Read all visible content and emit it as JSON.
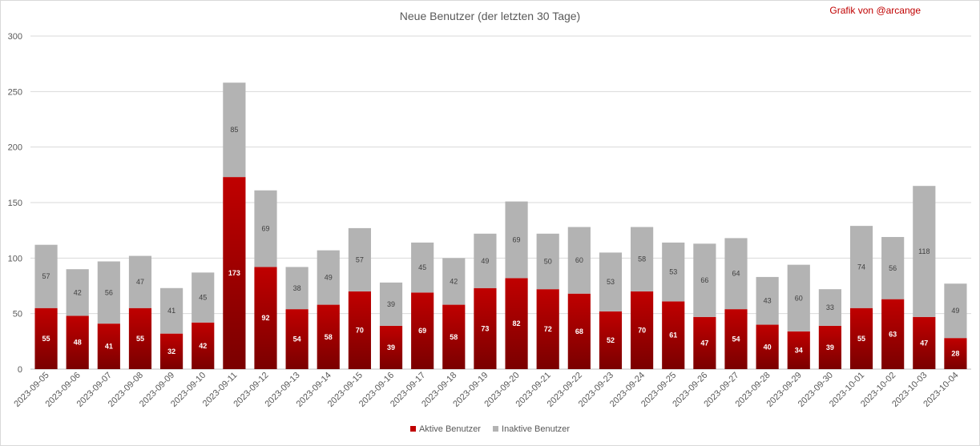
{
  "credit": "Grafik von @arcange",
  "colors": {
    "active_top": "#c00000",
    "active_bottom": "#7a0000",
    "inactive": "#b3b3b3",
    "grid": "#d9d9d9"
  },
  "chart_data": {
    "type": "bar",
    "stacked": true,
    "title": "Neue Benutzer (der letzten 30 Tage)",
    "ylim": [
      0,
      300
    ],
    "yticks": [
      0,
      50,
      100,
      150,
      200,
      250,
      300
    ],
    "grid": "horizontal",
    "legend_position": "bottom",
    "categories": [
      "2023-09-05",
      "2023-09-06",
      "2023-09-07",
      "2023-09-08",
      "2023-09-09",
      "2023-09-10",
      "2023-09-11",
      "2023-09-12",
      "2023-09-13",
      "2023-09-14",
      "2023-09-15",
      "2023-09-16",
      "2023-09-17",
      "2023-09-18",
      "2023-09-19",
      "2023-09-20",
      "2023-09-21",
      "2023-09-22",
      "2023-09-23",
      "2023-09-24",
      "2023-09-25",
      "2023-09-26",
      "2023-09-27",
      "2023-09-28",
      "2023-09-29",
      "2023-09-30",
      "2023-10-01",
      "2023-10-02",
      "2023-10-03",
      "2023-10-04"
    ],
    "series": [
      {
        "name": "Aktive Benutzer",
        "values": [
          55,
          48,
          41,
          55,
          32,
          42,
          173,
          92,
          54,
          58,
          70,
          39,
          69,
          58,
          73,
          82,
          72,
          68,
          52,
          70,
          61,
          47,
          54,
          40,
          34,
          39,
          55,
          63,
          47,
          28
        ]
      },
      {
        "name": "Inaktive Benutzer",
        "values": [
          57,
          42,
          56,
          47,
          41,
          45,
          85,
          69,
          38,
          49,
          57,
          39,
          45,
          42,
          49,
          69,
          50,
          60,
          53,
          58,
          53,
          66,
          64,
          43,
          60,
          33,
          74,
          56,
          118,
          49
        ]
      }
    ]
  }
}
